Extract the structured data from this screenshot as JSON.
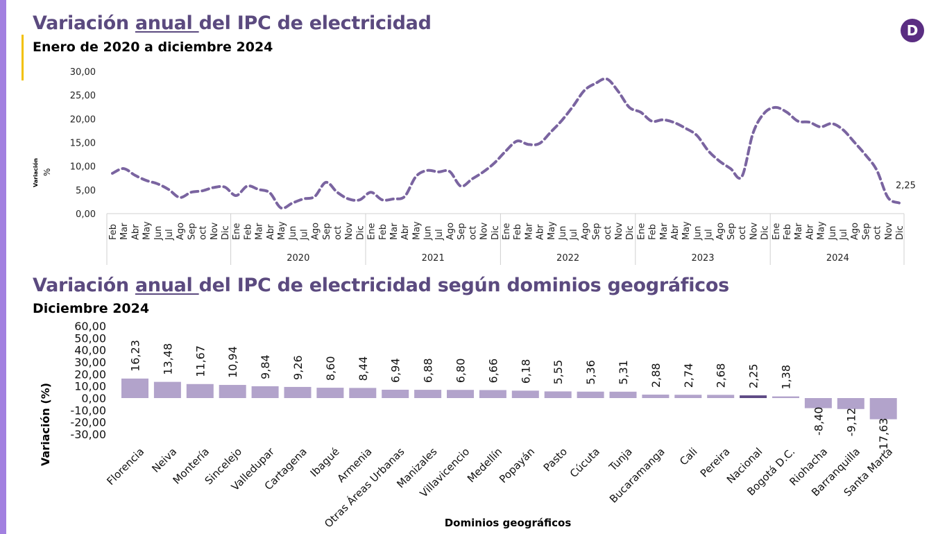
{
  "header": {
    "title1_pre": "Variación ",
    "title1_u": "anual ",
    "title1_post": "del IPC de electricidad",
    "subtitle1": "Enero de 2020 a diciembre 2024",
    "title2_pre": "Variación ",
    "title2_u": "anual ",
    "title2_post": "del IPC de electricidad según dominios geográficos",
    "subtitle2": "Diciembre 2024",
    "logo": "D"
  },
  "colors": {
    "title": "#5b4a7f",
    "line": "#7a64a0",
    "bar": "#b2a3cb",
    "bar_highlight": "#5e4a85",
    "band": "#a280e0",
    "accent": "#f2c000"
  },
  "chart_data": [
    {
      "type": "line",
      "ylabel": "Variación %",
      "ylim": [
        0,
        30
      ],
      "yticks": [
        "0,00",
        "5,00",
        "10,00",
        "15,00",
        "20,00",
        "25,00",
        "30,00"
      ],
      "line_style": "dashed",
      "grid": false,
      "groups": [
        {
          "year": "",
          "months": [
            "Feb",
            "Mar",
            "Abr",
            "May",
            "Jun",
            "Jul",
            "Ago",
            "Sep",
            "oct",
            "Nov",
            "Dic"
          ]
        },
        {
          "year": "2020",
          "months": [
            "Ene",
            "Feb",
            "Mar",
            "Abr",
            "May",
            "Jun",
            "Jul",
            "Ago",
            "Sep",
            "oct",
            "Nov",
            "Dic"
          ]
        },
        {
          "year": "2021",
          "months": [
            "Ene",
            "Feb",
            "Mar",
            "Abr",
            "May",
            "Jun",
            "Jul",
            "Ago",
            "Sep",
            "oct",
            "Nov",
            "Dic"
          ]
        },
        {
          "year": "2022",
          "months": [
            "Ene",
            "Feb",
            "Mar",
            "Abr",
            "May",
            "Jun",
            "Jul",
            "Ago",
            "Sep",
            "oct",
            "Nov",
            "Dic"
          ]
        },
        {
          "year": "2023",
          "months": [
            "Ene",
            "Feb",
            "Mar",
            "Abr",
            "May",
            "Jun",
            "Jul",
            "Ago",
            "Sep",
            "oct",
            "Nov",
            "Dic"
          ]
        },
        {
          "year": "2024",
          "months": [
            "Ene",
            "Feb",
            "Mar",
            "Abr",
            "May",
            "Jun",
            "Jul",
            "Ago",
            "Sep",
            "oct",
            "Nov",
            "Dic"
          ]
        }
      ],
      "values": [
        8.5,
        9.5,
        8.1,
        7.0,
        6.3,
        5.1,
        3.4,
        4.5,
        4.8,
        5.5,
        5.6,
        3.8,
        5.8,
        5.1,
        4.4,
        1.2,
        2.2,
        3.1,
        3.6,
        6.6,
        4.5,
        3.1,
        2.9,
        4.5,
        2.9,
        3.1,
        3.6,
        7.8,
        9.1,
        8.8,
        8.9,
        5.8,
        7.3,
        8.8,
        10.7,
        13.2,
        15.3,
        14.6,
        14.8,
        17.2,
        19.7,
        22.7,
        26.0,
        27.5,
        28.4,
        25.8,
        22.4,
        21.4,
        19.5,
        19.8,
        19.2,
        18.0,
        16.5,
        13.3,
        11.1,
        9.5,
        7.8,
        17.0,
        21.2,
        22.4,
        21.4,
        19.5,
        19.3,
        18.3,
        19.0,
        17.7,
        15.1,
        12.4,
        9.2,
        3.4,
        2.25
      ],
      "annotation": "2,25"
    },
    {
      "type": "bar",
      "xlabel": "Dominios geográficos",
      "ylabel": "Variación (%)",
      "ylim": [
        -30,
        60
      ],
      "yticks": [
        "-30,00",
        "-20,00",
        "-10,00",
        "0,00",
        "10,00",
        "20,00",
        "30,00",
        "40,00",
        "50,00",
        "60,00"
      ],
      "categories": [
        "Florencia",
        "Neiva",
        "Montería",
        "Sincelejo",
        "Valledupar",
        "Cartagena",
        "Ibagué",
        "Armenia",
        "Otras Áreas Urbanas",
        "Manizales",
        "Villavicencio",
        "Medellín",
        "Popayán",
        "Pasto",
        "Cúcuta",
        "Tunja",
        "Bucaramanga",
        "Cali",
        "Pereira",
        "Nacional",
        "Bogotá D.C.",
        "Riohacha",
        "Barranquilla",
        "Santa Marta"
      ],
      "values": [
        16.23,
        13.48,
        11.67,
        10.94,
        9.84,
        9.26,
        8.6,
        8.44,
        6.94,
        6.88,
        6.8,
        6.66,
        6.18,
        5.55,
        5.36,
        5.31,
        2.88,
        2.74,
        2.68,
        2.25,
        1.38,
        -8.4,
        -9.12,
        -17.63
      ],
      "labels": [
        "16,23",
        "13,48",
        "11,67",
        "10,94",
        "9,84",
        "9,26",
        "8,60",
        "8,44",
        "6,94",
        "6,88",
        "6,80",
        "6,66",
        "6,18",
        "5,55",
        "5,36",
        "5,31",
        "2,88",
        "2,74",
        "2,68",
        "2,25",
        "1,38",
        "-8,40",
        "-9,12",
        "-17,63"
      ],
      "highlight": "Nacional"
    }
  ]
}
